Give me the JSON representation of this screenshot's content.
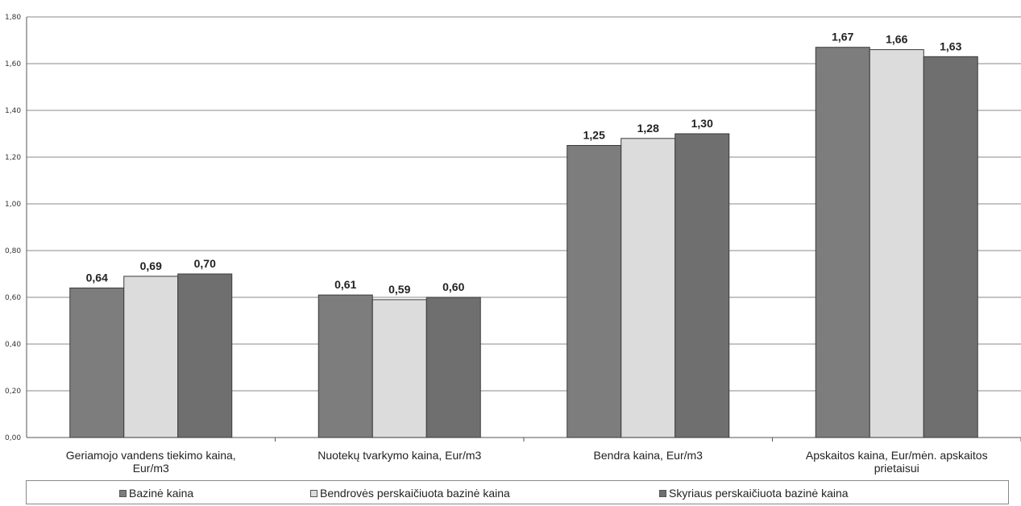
{
  "chart_data": {
    "type": "bar",
    "categories": [
      [
        "Geriamojo vandens tiekimo kaina,",
        "Eur/m3"
      ],
      [
        "Nuotekų tvarkymo kaina, Eur/m3"
      ],
      [
        "Bendra kaina, Eur/m3"
      ],
      [
        "Apskaitos kaina, Eur/mėn. apskaitos",
        "prietaisui"
      ]
    ],
    "series": [
      {
        "name": "Bazinė kaina",
        "color": "#7d7d7d",
        "values": [
          0.64,
          0.61,
          1.25,
          1.67
        ],
        "labels": [
          "0,64",
          "0,61",
          "1,25",
          "1,67"
        ]
      },
      {
        "name": "Bendrovės perskaičiuota bazinė kaina",
        "color": "#dcdcdc",
        "values": [
          0.69,
          0.59,
          1.28,
          1.66
        ],
        "labels": [
          "0,69",
          "0,59",
          "1,28",
          "1,66"
        ]
      },
      {
        "name": "Skyriaus perskaičiuota bazinė kaina",
        "color": "#6f6f6f",
        "values": [
          0.7,
          0.6,
          1.3,
          1.63
        ],
        "labels": [
          "0,70",
          "0,60",
          "1,30",
          "1,63"
        ]
      }
    ],
    "ylim": [
      0,
      1.8
    ],
    "yticks": [
      "0,00",
      "0,20",
      "0,40",
      "0,60",
      "0,80",
      "1,00",
      "1,20",
      "1,40",
      "1,60",
      "1,80"
    ],
    "grid": true,
    "legend_position": "bottom"
  }
}
